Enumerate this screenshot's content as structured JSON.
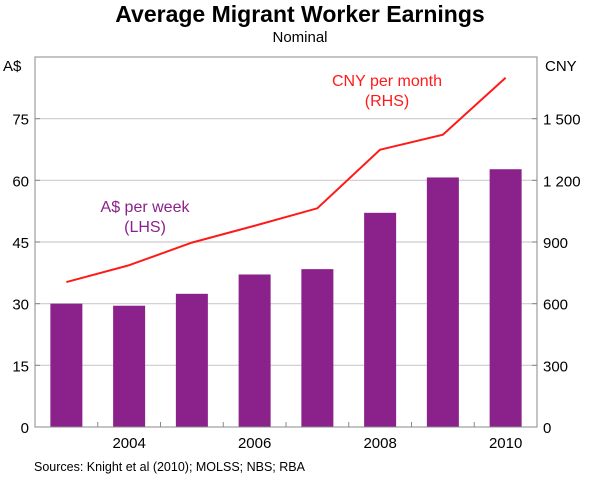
{
  "chart_data": {
    "type": "bar+line",
    "title": "Average Migrant Worker Earnings",
    "subtitle": "Nominal",
    "left_axis": {
      "unit": "A$",
      "ylim": [
        0,
        90
      ],
      "ticks": [
        "0",
        "15",
        "30",
        "45",
        "60",
        "75"
      ],
      "tick_values": [
        0,
        15,
        30,
        45,
        60,
        75
      ]
    },
    "right_axis": {
      "unit": "CNY",
      "ylim": [
        0,
        1800
      ],
      "ticks": [
        "0",
        "300",
        "600",
        "900",
        "1 200",
        "1 500"
      ],
      "tick_values": [
        0,
        300,
        600,
        900,
        1200,
        1500
      ]
    },
    "x": [
      2003,
      2004,
      2005,
      2006,
      2007,
      2008,
      2009,
      2010
    ],
    "x_ticks": [
      "2004",
      "2006",
      "2008",
      "2010"
    ],
    "x_tick_values": [
      2004,
      2006,
      2008,
      2010
    ],
    "xlim": [
      2002.5,
      2010.5
    ],
    "grid": true,
    "series": [
      {
        "name": "A$ per week",
        "label_line1": "A$ per week",
        "label_line2": "(LHS)",
        "type": "bar",
        "axis": "left",
        "color": "#8B228B",
        "values": [
          30.0,
          29.5,
          32.4,
          37.1,
          38.4,
          52.1,
          60.7,
          62.7
        ]
      },
      {
        "name": "CNY per month",
        "label_line1": "CNY per month",
        "label_line2": "(RHS)",
        "type": "line",
        "axis": "right",
        "color": "#FF1A1A",
        "values": [
          705,
          787,
          897,
          979,
          1064,
          1349,
          1422,
          1699
        ]
      }
    ],
    "source": "Sources: Knight et al (2010); MOLSS; NBS; RBA"
  }
}
